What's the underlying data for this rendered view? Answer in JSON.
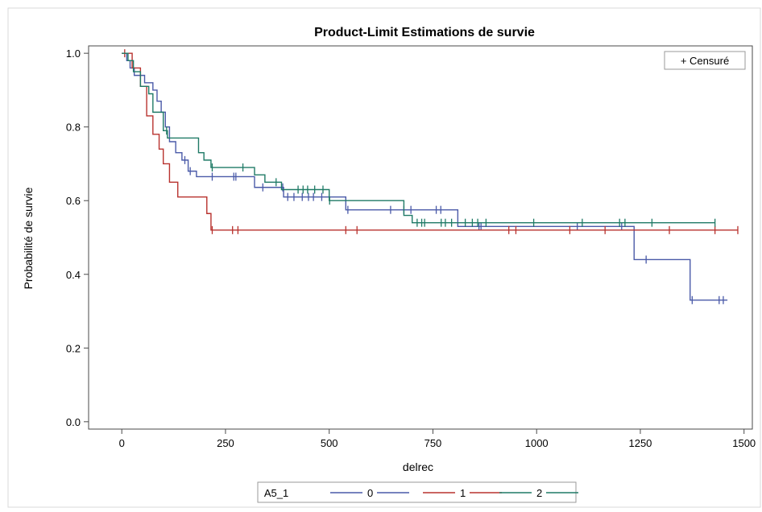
{
  "chart_data": {
    "type": "line",
    "title": "Product-Limit Estimations de survie",
    "xlabel": "delrec",
    "ylabel": "Probabilité de survie",
    "xlim": [
      -80,
      1520
    ],
    "ylim": [
      -0.02,
      1.02
    ],
    "x_ticks": [
      0,
      250,
      500,
      750,
      1000,
      1250,
      1500
    ],
    "y_ticks": [
      0.0,
      0.2,
      0.4,
      0.6,
      0.8,
      1.0
    ],
    "x_tick_labels": [
      "0",
      "250",
      "500",
      "750",
      "1000",
      "1250",
      "1500"
    ],
    "y_tick_labels": [
      "0.0",
      "0.2",
      "0.4",
      "0.6",
      "0.8",
      "1.0"
    ],
    "grid": false,
    "legend": {
      "title": "A5_1",
      "placement": "bottom"
    },
    "inset_legend": {
      "label": "+ Censuré",
      "placement": "top-right"
    },
    "series": [
      {
        "name": "0",
        "color": "#4a5aa8",
        "steps": [
          [
            0,
            1.0
          ],
          [
            12,
            0.98
          ],
          [
            20,
            0.96
          ],
          [
            30,
            0.94
          ],
          [
            55,
            0.92
          ],
          [
            75,
            0.9
          ],
          [
            85,
            0.87
          ],
          [
            95,
            0.84
          ],
          [
            105,
            0.8
          ],
          [
            115,
            0.76
          ],
          [
            130,
            0.73
          ],
          [
            145,
            0.71
          ],
          [
            160,
            0.68
          ],
          [
            180,
            0.665
          ],
          [
            320,
            0.636
          ],
          [
            390,
            0.61
          ],
          [
            540,
            0.575
          ],
          [
            575,
            0.575
          ],
          [
            810,
            0.53
          ],
          [
            1235,
            0.44
          ],
          [
            1370,
            0.33
          ],
          [
            1460,
            0.33
          ]
        ],
        "censored": [
          152,
          165,
          218,
          270,
          275,
          340,
          388,
          400,
          415,
          435,
          450,
          462,
          482,
          545,
          648,
          680,
          697,
          758,
          769,
          861,
          866,
          1098,
          1205,
          1264,
          1375,
          1440,
          1450
        ]
      },
      {
        "name": "1",
        "color": "#b8322e",
        "steps": [
          [
            0,
            1.0
          ],
          [
            25,
            0.96
          ],
          [
            45,
            0.91
          ],
          [
            60,
            0.83
          ],
          [
            75,
            0.78
          ],
          [
            90,
            0.74
          ],
          [
            100,
            0.7
          ],
          [
            115,
            0.65
          ],
          [
            135,
            0.61
          ],
          [
            205,
            0.565
          ],
          [
            215,
            0.52
          ],
          [
            1485,
            0.52
          ]
        ],
        "censored": [
          7,
          218,
          267,
          280,
          540,
          567,
          933,
          950,
          1080,
          1165,
          1320,
          1430,
          1485
        ]
      },
      {
        "name": "2",
        "color": "#1f7a66",
        "steps": [
          [
            0,
            1.0
          ],
          [
            15,
            0.98
          ],
          [
            28,
            0.95
          ],
          [
            45,
            0.91
          ],
          [
            65,
            0.89
          ],
          [
            75,
            0.84
          ],
          [
            100,
            0.79
          ],
          [
            110,
            0.77
          ],
          [
            185,
            0.73
          ],
          [
            198,
            0.71
          ],
          [
            215,
            0.69
          ],
          [
            320,
            0.67
          ],
          [
            345,
            0.65
          ],
          [
            385,
            0.63
          ],
          [
            500,
            0.6
          ],
          [
            680,
            0.56
          ],
          [
            700,
            0.54
          ],
          [
            1430,
            0.54
          ]
        ],
        "censored": [
          108,
          218,
          292,
          372,
          425,
          437,
          448,
          465,
          485,
          501,
          712,
          723,
          730,
          770,
          780,
          795,
          828,
          845,
          858,
          878,
          993,
          1110,
          1200,
          1213,
          1278,
          1430
        ]
      }
    ]
  }
}
